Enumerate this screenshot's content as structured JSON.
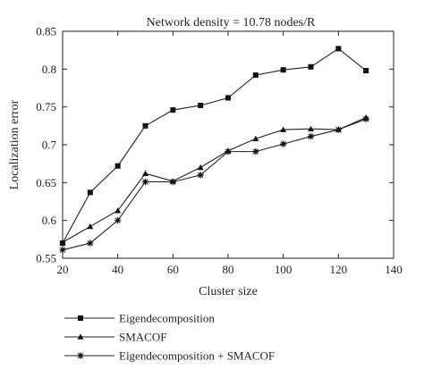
{
  "chart_data": {
    "type": "line",
    "title": "Network density = 10.78 nodes/R",
    "xlabel": "Cluster size",
    "ylabel": "Localization error",
    "xlim": [
      20,
      140
    ],
    "ylim": [
      0.55,
      0.85
    ],
    "xticks": [
      "20",
      "40",
      "60",
      "80",
      "100",
      "120",
      "140"
    ],
    "yticks": [
      "0.55",
      "0.6",
      "0.65",
      "0.7",
      "0.75",
      "0.8",
      "0.85"
    ],
    "grid": false,
    "legend_position": "below plot",
    "x": [
      20,
      30,
      40,
      50,
      60,
      70,
      80,
      90,
      100,
      110,
      120,
      130
    ],
    "series": [
      {
        "name": "Eigendecomposition",
        "marker": "square",
        "values": [
          0.57,
          0.637,
          0.672,
          0.725,
          0.746,
          0.752,
          0.762,
          0.792,
          0.799,
          0.803,
          0.827,
          0.798
        ]
      },
      {
        "name": "SMACOF",
        "marker": "triangle",
        "values": [
          0.571,
          0.592,
          0.613,
          0.662,
          0.652,
          0.67,
          0.692,
          0.708,
          0.72,
          0.721,
          0.72,
          0.736
        ]
      },
      {
        "name": "Eigendecomposition + SMACOF",
        "marker": "star",
        "values": [
          0.561,
          0.57,
          0.6,
          0.651,
          0.651,
          0.66,
          0.691,
          0.691,
          0.701,
          0.711,
          0.72,
          0.734
        ]
      }
    ]
  }
}
